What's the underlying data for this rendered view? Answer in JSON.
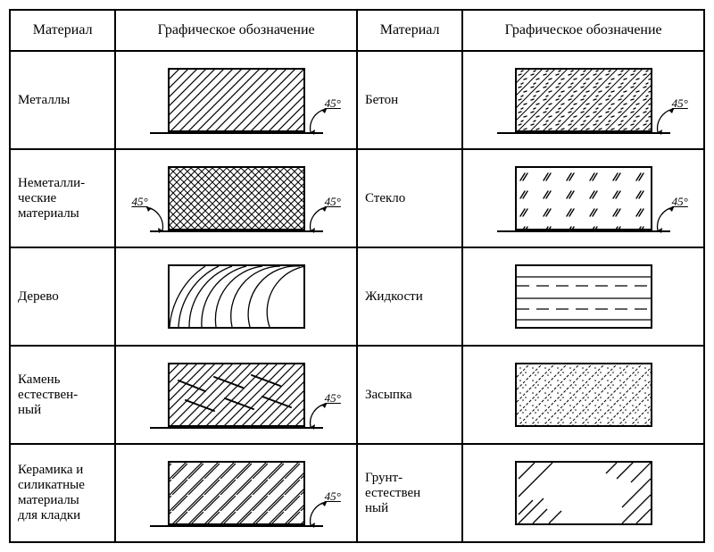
{
  "columns": [
    "Материал",
    "Графическое обозначение",
    "Материал",
    "Графическое обозначение"
  ],
  "angle_label": "45°",
  "rows": [
    {
      "left": {
        "name": "Металлы",
        "pattern": "diag45",
        "angles": [
          "right"
        ]
      },
      "right": {
        "name": "Бетон",
        "pattern": "concrete",
        "angles": [
          "right"
        ]
      }
    },
    {
      "left": {
        "name": "Неметалли-\nческие\nматериалы",
        "pattern": "cross45",
        "angles": [
          "left",
          "right"
        ]
      },
      "right": {
        "name": "Стекло",
        "pattern": "glass",
        "angles": [
          "right"
        ]
      }
    },
    {
      "left": {
        "name": "Дерево",
        "pattern": "wood",
        "angles": []
      },
      "right": {
        "name": "Жидкости",
        "pattern": "liquid",
        "angles": []
      }
    },
    {
      "left": {
        "name": "Камень\nестествен-\nный",
        "pattern": "stone",
        "angles": [
          "right"
        ]
      },
      "right": {
        "name": "Засыпка",
        "pattern": "fill",
        "angles": []
      }
    },
    {
      "left": {
        "name": "Керамика и\nсиликатные\nматериалы\nдля кладки",
        "pattern": "ceramic",
        "angles": [
          "right"
        ]
      },
      "right": {
        "name": "Грунт-\nестествен\nный",
        "pattern": "ground",
        "angles": []
      }
    }
  ],
  "colors": {
    "stroke": "#000000",
    "bg": "#ffffff"
  }
}
